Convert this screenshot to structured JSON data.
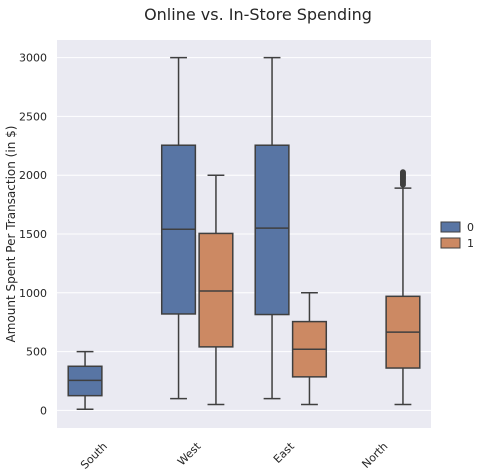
{
  "chart_data": {
    "type": "box",
    "title": "Online vs. In-Store Spending",
    "xlabel": "",
    "ylabel": "Amount Spent Per Transaction (in $)",
    "categories": [
      "South",
      "West",
      "East",
      "North"
    ],
    "ylim": [
      -150,
      3150
    ],
    "yticks": [
      0,
      500,
      1000,
      1500,
      2000,
      2500,
      3000
    ],
    "grid": true,
    "legend": {
      "placement": "right",
      "entries": [
        "0",
        "1"
      ]
    },
    "colors": {
      "0": "#5875a4",
      "1": "#cc8963",
      "background": "#eaeaf2",
      "grid": "#ffffff",
      "line": "#3f3f3f"
    },
    "series": [
      {
        "name": "0",
        "boxes": [
          {
            "category": "South",
            "whisker_low": 10,
            "q1": 125,
            "median": 255,
            "q3": 375,
            "whisker_high": 500,
            "outliers": []
          },
          {
            "category": "West",
            "whisker_low": 100,
            "q1": 820,
            "median": 1540,
            "q3": 2255,
            "whisker_high": 3000,
            "outliers": []
          },
          {
            "category": "East",
            "whisker_low": 100,
            "q1": 815,
            "median": 1550,
            "q3": 2255,
            "whisker_high": 3000,
            "outliers": []
          },
          null
        ]
      },
      {
        "name": "1",
        "boxes": [
          null,
          {
            "category": "West",
            "whisker_low": 50,
            "q1": 540,
            "median": 1015,
            "q3": 1505,
            "whisker_high": 2000,
            "outliers": []
          },
          {
            "category": "East",
            "whisker_low": 50,
            "q1": 285,
            "median": 520,
            "q3": 755,
            "whisker_high": 1000,
            "outliers": []
          },
          {
            "category": "North",
            "whisker_low": 50,
            "q1": 360,
            "median": 665,
            "q3": 970,
            "whisker_high": 1890,
            "outliers": [
              1920,
              1935,
              1950,
              1965,
              1975,
              1985,
              1995,
              2005,
              2015,
              2025
            ]
          }
        ]
      }
    ]
  }
}
